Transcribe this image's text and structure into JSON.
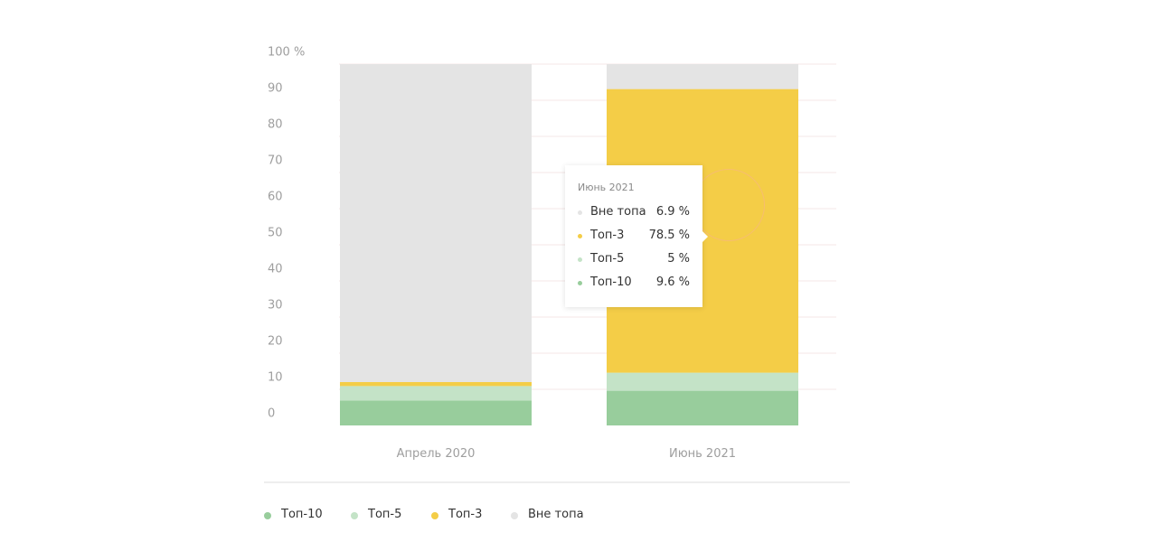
{
  "chart_data": {
    "type": "bar",
    "stacked": true,
    "categories": [
      "Апрель 2020",
      "Июнь 2021"
    ],
    "series": [
      {
        "name": "Топ-10",
        "color": "#98cd9c",
        "values": [
          6.9,
          9.6
        ]
      },
      {
        "name": "Топ-5",
        "color": "#c4e3c7",
        "values": [
          4.0,
          5.0
        ]
      },
      {
        "name": "Топ-3",
        "color": "#f4cd47",
        "values": [
          1.1,
          78.5
        ]
      },
      {
        "name": "Вне топа",
        "color": "#e4e4e4",
        "values": [
          88.0,
          6.9
        ]
      }
    ],
    "yticks": [
      "100 %",
      "90",
      "80",
      "70",
      "60",
      "50",
      "40",
      "30",
      "20",
      "10",
      "0"
    ],
    "ylim": [
      0,
      100
    ],
    "grid": true,
    "legend_position": "bottom-left"
  },
  "tooltip": {
    "title": "Июнь 2021",
    "rows": [
      {
        "name": "Вне топа",
        "value": "6.9 %",
        "color": "#e4e4e4"
      },
      {
        "name": "Топ-3",
        "value": "78.5 %",
        "color": "#f4cd47"
      },
      {
        "name": "Топ-5",
        "value": "5 %",
        "color": "#c4e3c7"
      },
      {
        "name": "Топ-10",
        "value": "9.6 %",
        "color": "#98cd9c"
      }
    ]
  },
  "legend": [
    {
      "label": "Топ-10",
      "color": "#98cd9c"
    },
    {
      "label": "Топ-5",
      "color": "#c4e3c7"
    },
    {
      "label": "Топ-3",
      "color": "#f4cd47"
    },
    {
      "label": "Вне топа",
      "color": "#e4e4e4"
    }
  ]
}
